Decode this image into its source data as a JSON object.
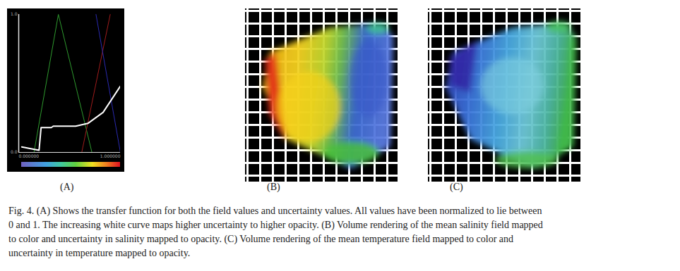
{
  "chart_data": {
    "type": "line",
    "xlim": [
      0,
      1
    ],
    "ylim": [
      0,
      1
    ],
    "xticks": [
      {
        "value": 0,
        "label": "0.000000"
      },
      {
        "value": 1,
        "label": "1.000000"
      }
    ],
    "yticks": [
      {
        "value": 0,
        "label": "0.0"
      },
      {
        "value": 1,
        "label": "1.0"
      }
    ],
    "series": [
      {
        "color": "#2e9a2e",
        "x": [
          0.15,
          0.39,
          0.72
        ],
        "values": [
          0,
          1,
          0
        ]
      },
      {
        "color": "#a01c1c",
        "x": [
          0.62,
          0.9
        ],
        "values": [
          0,
          1
        ]
      },
      {
        "color": "#2a2ab0",
        "x": [
          0.76,
          1.0
        ],
        "values": [
          1,
          0
        ]
      },
      {
        "color": "#ffffff",
        "x": [
          0.03,
          0.2,
          0.22,
          0.32,
          0.34,
          0.56,
          0.68,
          0.83,
          1.0
        ],
        "values": [
          0.04,
          0.015,
          0.18,
          0.18,
          0.19,
          0.19,
          0.21,
          0.29,
          0.48
        ]
      }
    ]
  },
  "panels": [
    "(A)",
    "(B)",
    "(C)"
  ],
  "caption": [
    "Fig. 4.  (A) Shows the transfer function for both the field values and uncertainty values. All values have been normalized to lie between",
    "0 and 1. The increasing white curve maps higher uncertainty to higher opacity. (B) Volume rendering of the mean salinity field mapped",
    "to color and uncertainty in salinity mapped to opacity. (C) Volume rendering of the mean temperature field mapped to color and",
    "uncertainty in temperature mapped to opacity."
  ]
}
